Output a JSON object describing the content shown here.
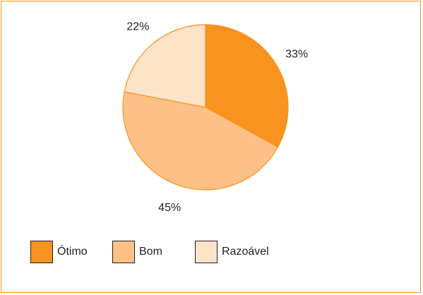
{
  "chart_data": {
    "type": "pie",
    "slices": [
      {
        "label": "Ótimo",
        "value": 33,
        "value_label": "33%",
        "color": "#f7931e"
      },
      {
        "label": "Bom",
        "value": 45,
        "value_label": "45%",
        "color": "#fdc086"
      },
      {
        "label": "Razoável",
        "value": 22,
        "value_label": "22%",
        "color": "#fde3c8"
      }
    ],
    "start_angle_deg": 0,
    "direction": "clockwise",
    "slice_edge_color": "#f7931e",
    "legend_position": "bottom-left"
  }
}
